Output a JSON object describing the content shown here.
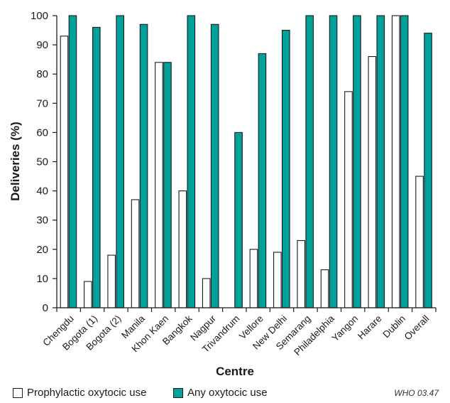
{
  "chart_data": {
    "type": "bar",
    "ylabel": "Deliveries (%)",
    "xlabel": "Centre",
    "ylim": [
      0,
      100
    ],
    "yticks": [
      0,
      10,
      20,
      30,
      40,
      50,
      60,
      70,
      80,
      90,
      100
    ],
    "grid": false,
    "legend_position": "bottom",
    "categories": [
      "Chengdu",
      "Bogota (1)",
      "Bogota (2)",
      "Manila",
      "Khon Kaen",
      "Bangkok",
      "Nagpur",
      "Trivandrum",
      "Vellore",
      "New Delhi",
      "Semarang",
      "Philadelphia",
      "Yangon",
      "Harare",
      "Dublin",
      "Overall"
    ],
    "series": [
      {
        "name": "Prophylactic oxytocic use",
        "color": "#ffffff",
        "values": [
          93,
          9,
          18,
          37,
          84,
          40,
          10,
          0,
          20,
          19,
          23,
          13,
          74,
          86,
          100,
          45
        ]
      },
      {
        "name": "Any oxytocic use",
        "color": "#00A19A",
        "values": [
          100,
          96,
          100,
          97,
          84,
          100,
          97,
          60,
          87,
          95,
          100,
          100,
          100,
          100,
          100,
          94
        ]
      }
    ]
  },
  "credit": "WHO 03.47"
}
